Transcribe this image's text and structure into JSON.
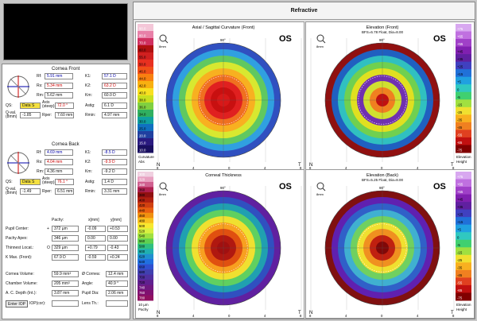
{
  "title": "Refractive",
  "front": {
    "heading": "Cornea Front",
    "rf": "5.91 mm",
    "rs": "5.34 mm",
    "rm": "5.62 mm",
    "k1": "57.1 D",
    "k2": "63.2 D",
    "km": "60.0 D",
    "qs": "Data S",
    "axis": "72.0 °",
    "astig": "6.1 D",
    "qval": "-1.85",
    "rper": "7.60 mm",
    "rmin": "4.97 mm"
  },
  "back": {
    "heading": "Cornea Back",
    "rf": "4.69 mm",
    "rs": "4.04 mm",
    "rm": "4.36 mm",
    "k1": "-8.5 D",
    "k2": "-9.9 D",
    "km": "-9.2 D",
    "qs": "Data S",
    "axis": "76.1 °",
    "astig": "1.4 D",
    "qval": "-1.49",
    "rper": "6.51 mm",
    "rmin": "3.31 mm"
  },
  "labels": {
    "rf": "Rf:",
    "rs": "Rs:",
    "rm": "Rm:",
    "k1": "K1:",
    "k2": "K2:",
    "km": "Km:",
    "qs": "QS:",
    "axis": "Axis (steep):",
    "astig": "Astig:",
    "qval": "Q-val. (8mm)",
    "rper": "Rper:",
    "rmin": "Rmin:",
    "pachy": "Pachy:",
    "xmm": "x[mm]",
    "ymm": "y[mm]"
  },
  "pachy": {
    "rows": [
      {
        "label": "Pupil Center:",
        "mark": "+",
        "val": "372 µm",
        "x": "-0.09",
        "y": "+0.53"
      },
      {
        "label": "Pachy Apex:",
        "mark": "",
        "val": "346 µm",
        "x": "0.00",
        "y": "0.00"
      },
      {
        "label": "Thinnest Locat.:",
        "mark": "O",
        "val": "329 µm",
        "x": "+0.79",
        "y": "-0.43"
      },
      {
        "label": "K Max. (Front):",
        "mark": "",
        "val": "67.9 D",
        "x": "-0.59",
        "y": "+0.24"
      }
    ]
  },
  "bottom": {
    "corneaVolume_l": "Cornea Volume:",
    "corneaVolume": "59.9 mm³",
    "corneaDia_l": "Ø Cornea:",
    "corneaDia": "12.4 mm",
    "chamberVolume_l": "Chamber Volume:",
    "chamberVolume": "205 mm³",
    "angle_l": "Angle:",
    "angle": "40.9 °",
    "acDepth_l": "A. C. Depth (Int.):",
    "acDepth": "3.87 mm",
    "pupilDia_l": "Pupil Dia:",
    "pupilDia": "2.06 mm",
    "iop_l": "Enter IOP",
    "iopcor_l": "IOP(cor):",
    "lens_l": "Lens Th.:"
  },
  "maps": {
    "tl": {
      "title": "Axial / Sagittal Curvature (Front)",
      "sub": "",
      "eye": "OS",
      "unit1": "Curvature",
      "unit2": "Abs",
      "top": "90°",
      "n": "N",
      "t": "T",
      "zoom": "8mm"
    },
    "tr": {
      "title": "Elevation (Front)",
      "sub": "BFS=6.78 Float, Dia=8.00",
      "eye": "OS",
      "unit1": "Elevation",
      "unit2": "Height",
      "top": "90°",
      "n": "N",
      "t": "T",
      "zoom": "8mm"
    },
    "bl": {
      "title": "Corneal Thickness",
      "sub": "",
      "eye": "OS",
      "unit1": "10 µm",
      "unit2": "Pachy",
      "top": "90°",
      "n": "N",
      "t": "T",
      "zoom": "8mm"
    },
    "br": {
      "title": "Elevation (Back)",
      "sub": "BFS=5.25 Float, Dia=8.00",
      "eye": "OS",
      "unit1": "Elevation",
      "unit2": "Height",
      "top": "90°",
      "n": "N",
      "t": "T",
      "zoom": "8mm"
    }
  },
  "scales": {
    "curv": [
      "90.0",
      "80.0",
      "70.0",
      "60.0",
      "55.0",
      "50.0",
      "46.0",
      "44.0",
      "42.0",
      "40.0",
      "38.0",
      "36.0",
      "34.0",
      "30.0",
      "25.0",
      "20.0",
      "15.0",
      "10.0"
    ],
    "elev": [
      "+75",
      "+65",
      "+55",
      "+45",
      "+35",
      "+25",
      "+15",
      "+5",
      "0",
      "-5",
      "-15",
      "-25",
      "-35",
      "-45",
      "-55",
      "-65",
      "-75"
    ],
    "pachy": [
      "300",
      "320",
      "340",
      "360",
      "380",
      "400",
      "420",
      "440",
      "460",
      "480",
      "500",
      "520",
      "540",
      "560",
      "580",
      "600",
      "620",
      "640",
      "660",
      "680",
      "700",
      "720",
      "740",
      "760",
      "780"
    ],
    "elevBack": [
      "+75",
      "+65",
      "+55",
      "+45",
      "+35",
      "+25",
      "+15",
      "+5",
      "0",
      "-5",
      "-15",
      "-25",
      "-35",
      "-45",
      "-55",
      "-65",
      "-75"
    ]
  },
  "axisTicks": [
    "8",
    "4",
    "0",
    "4",
    "8"
  ]
}
